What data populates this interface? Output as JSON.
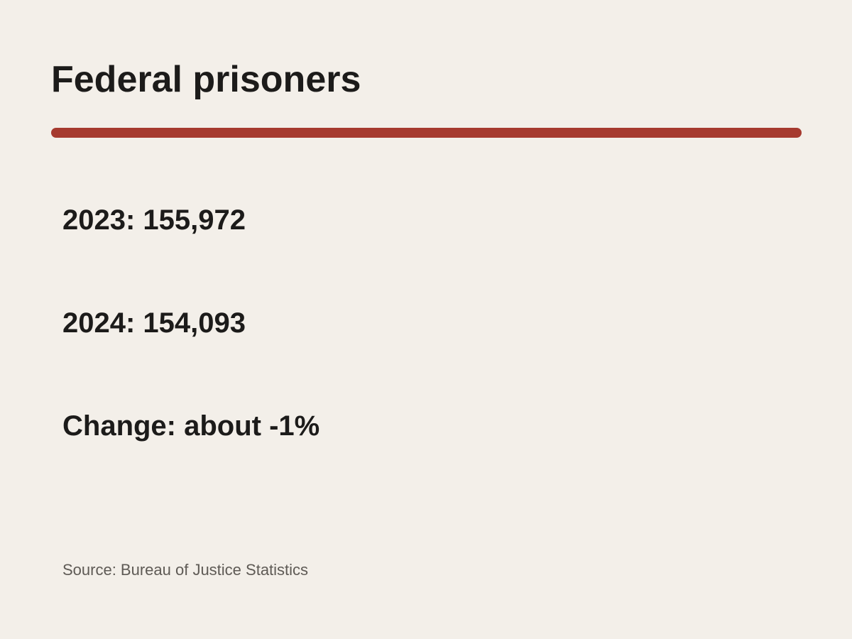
{
  "title": "Federal prisoners",
  "accent_color": "#A63A2F",
  "stats": [
    "2023: 155,972",
    "2024: 154,093",
    "Change: about -1%"
  ],
  "source": "Source: Bureau of Justice Statistics"
}
